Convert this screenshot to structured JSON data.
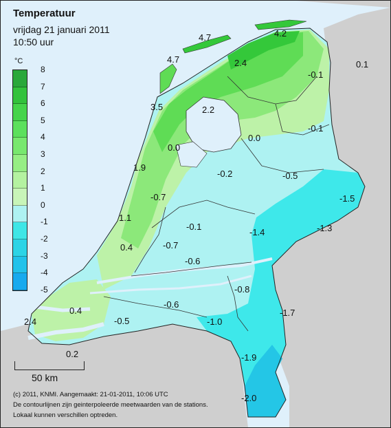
{
  "header": {
    "title": "Temperatuur",
    "subtitle": "vrijdag 21 januari 2011",
    "time": "10:50 uur"
  },
  "legend": {
    "unit": "°C",
    "ticks": [
      "8",
      "7",
      "6",
      "5",
      "4",
      "3",
      "2",
      "1",
      "0",
      "-1",
      "-2",
      "-3",
      "-4",
      "-5"
    ],
    "colors": [
      "#2aa83a",
      "#33c23c",
      "#45d44a",
      "#5ce05c",
      "#78e86e",
      "#96ee84",
      "#b4f2a0",
      "#c8f5b8",
      "#aef2f2",
      "#3ee6e6",
      "#2cd4e6",
      "#22c2ea",
      "#18aaee"
    ]
  },
  "scale": {
    "label": "50 km"
  },
  "footer": {
    "line1": "(c) 2011, KNMI. Aangemaakt: 21-01-2011, 10:06 UTC",
    "line2": "De contourlijnen zijn geinterpoleerde meetwaarden van de stations.",
    "line3": "Lokaal kunnen verschillen optreden."
  },
  "stations": [
    {
      "value": "4.7"
    },
    {
      "value": "4.2"
    },
    {
      "value": "4.7"
    },
    {
      "value": "2.4"
    },
    {
      "value": "0.1"
    },
    {
      "value": "-0.1"
    },
    {
      "value": "3.5"
    },
    {
      "value": "2.2"
    },
    {
      "value": "-0.1"
    },
    {
      "value": "0.0"
    },
    {
      "value": "0.0"
    },
    {
      "value": "1.9"
    },
    {
      "value": "-0.2"
    },
    {
      "value": "-0.5"
    },
    {
      "value": "-1.5"
    },
    {
      "value": "-0.7"
    },
    {
      "value": "1.1"
    },
    {
      "value": "-0.1"
    },
    {
      "value": "-1.3"
    },
    {
      "value": "-1.4"
    },
    {
      "value": "-0.7"
    },
    {
      "value": "0.4"
    },
    {
      "value": "-0.6"
    },
    {
      "value": "-0.8"
    },
    {
      "value": "-0.6"
    },
    {
      "value": "0.4"
    },
    {
      "value": "-1.7"
    },
    {
      "value": "-1.0"
    },
    {
      "value": "2.4"
    },
    {
      "value": "-0.5"
    },
    {
      "value": "0.2"
    },
    {
      "value": "-1.9"
    },
    {
      "value": "-2.0"
    }
  ],
  "colors": {
    "sea": "#dff0fb",
    "foreign_land": "#cfcfcf",
    "zone_3_4": "#34c83a",
    "zone_2_3": "#5fdc55",
    "zone_1_2": "#8ce87a",
    "zone_0_1": "#bdf2a8",
    "zone_m1_0": "#aef2f2",
    "zone_m2_m1": "#3ee8ea",
    "zone_m3_m2": "#24c6e6",
    "water": "#dff0fb"
  }
}
